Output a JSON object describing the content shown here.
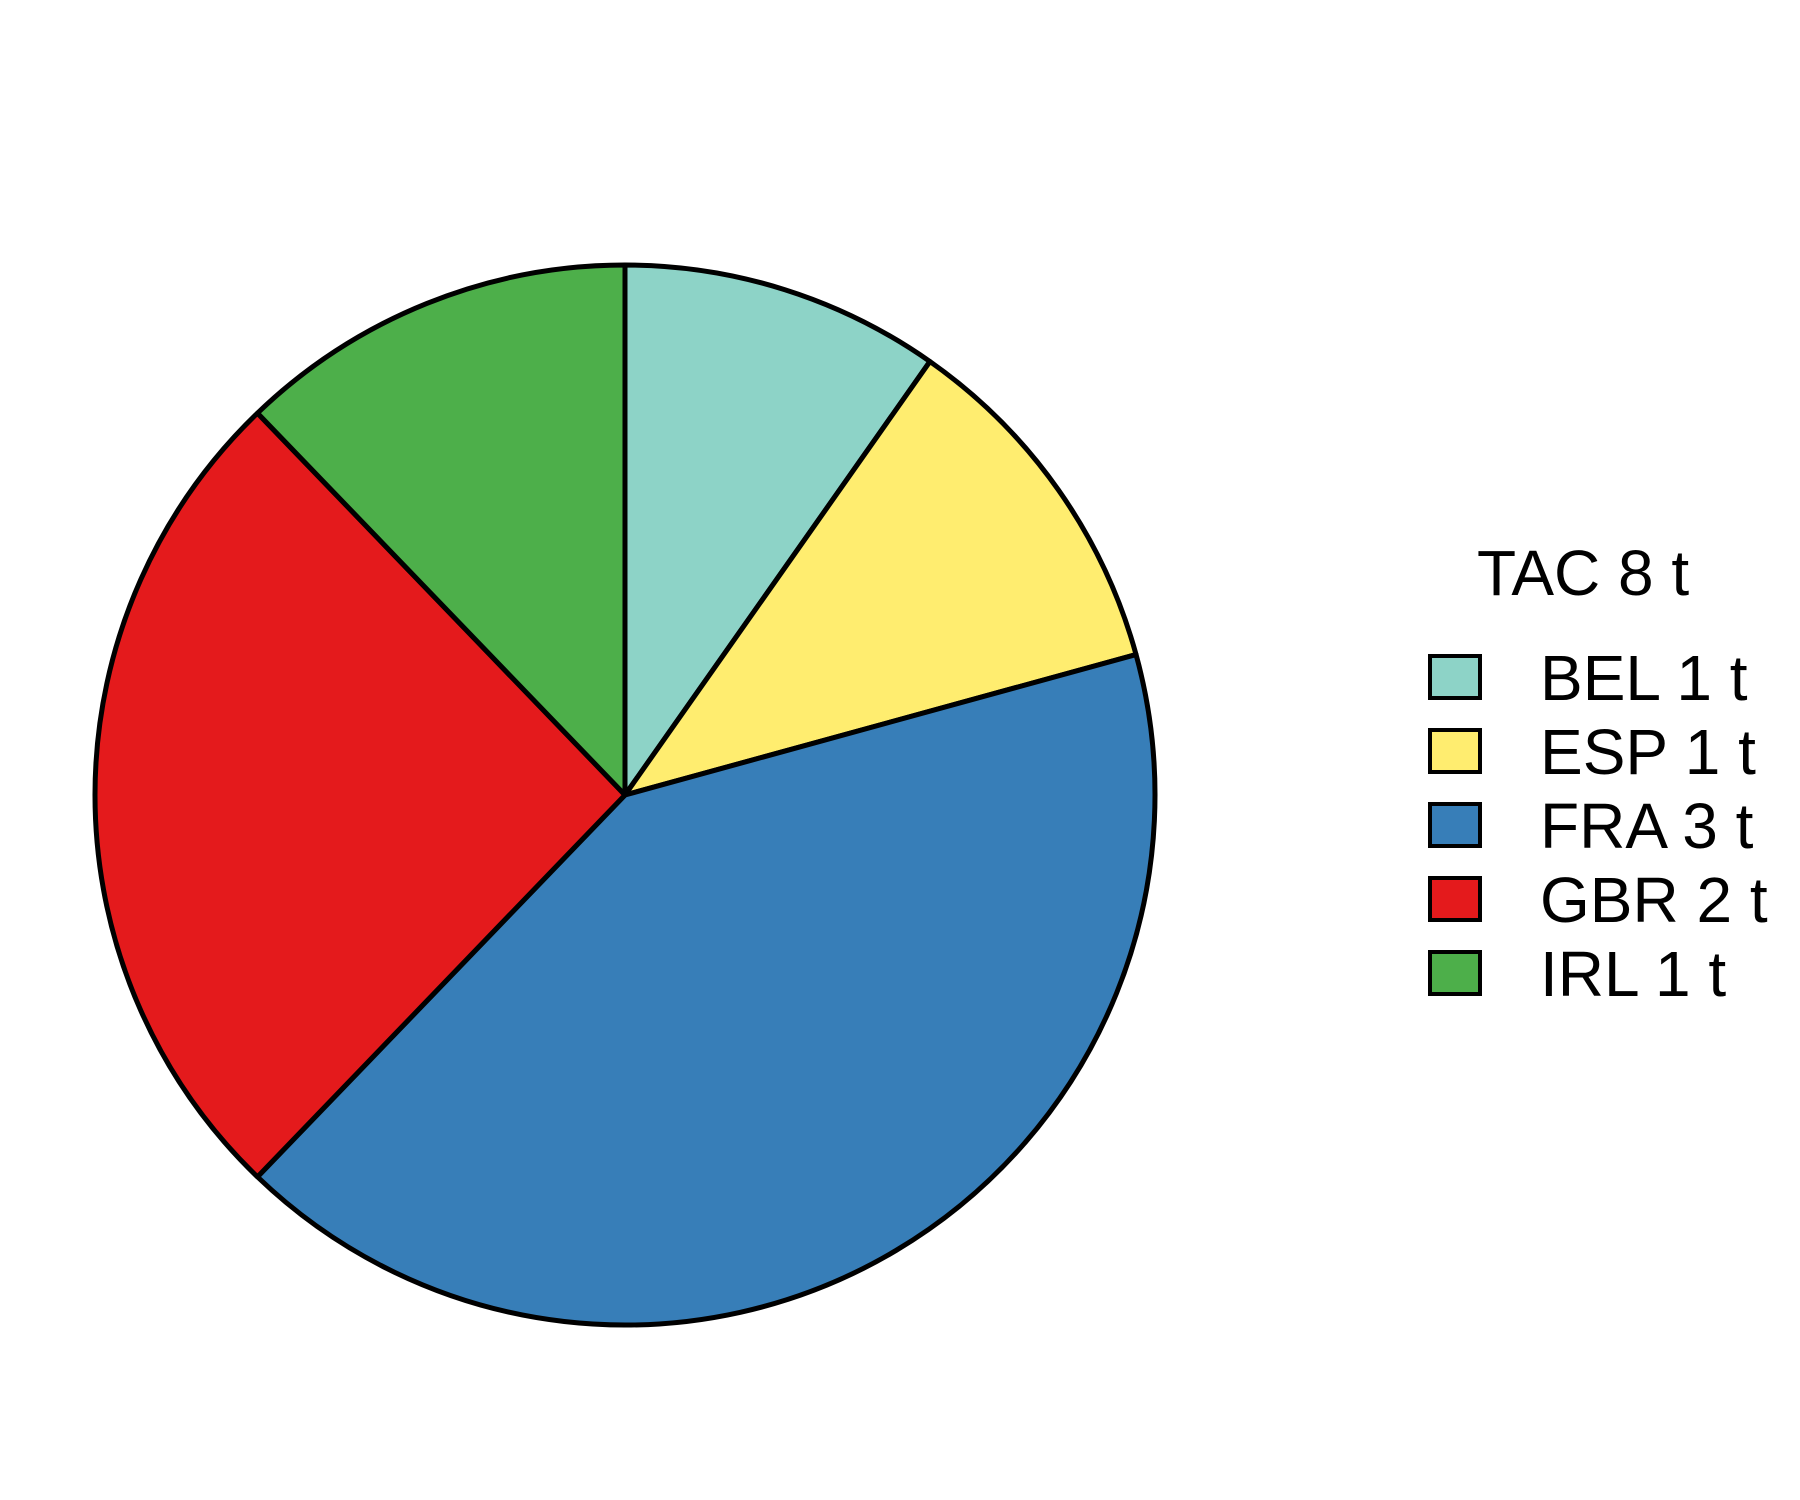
{
  "chart_data": {
    "type": "pie",
    "title": "",
    "legend": {
      "title": "TAC 8 t",
      "placement": "right"
    },
    "slices": [
      {
        "label": "BEL 1 t",
        "category": "BEL",
        "value": 0.8,
        "color": "#8DD3C7"
      },
      {
        "label": "ESP 1 t",
        "category": "ESP",
        "value": 0.9,
        "color": "#FFED6F"
      },
      {
        "label": "FRA 3 t",
        "category": "FRA",
        "value": 3.4,
        "color": "#377EB8"
      },
      {
        "label": "GBR 2 t",
        "category": "GBR",
        "value": 2.1,
        "color": "#E41A1C"
      },
      {
        "label": "IRL 1 t",
        "category": "IRL",
        "value": 1.0,
        "color": "#4DAF4A"
      }
    ],
    "start": "12 o'clock",
    "direction": "clockwise"
  }
}
